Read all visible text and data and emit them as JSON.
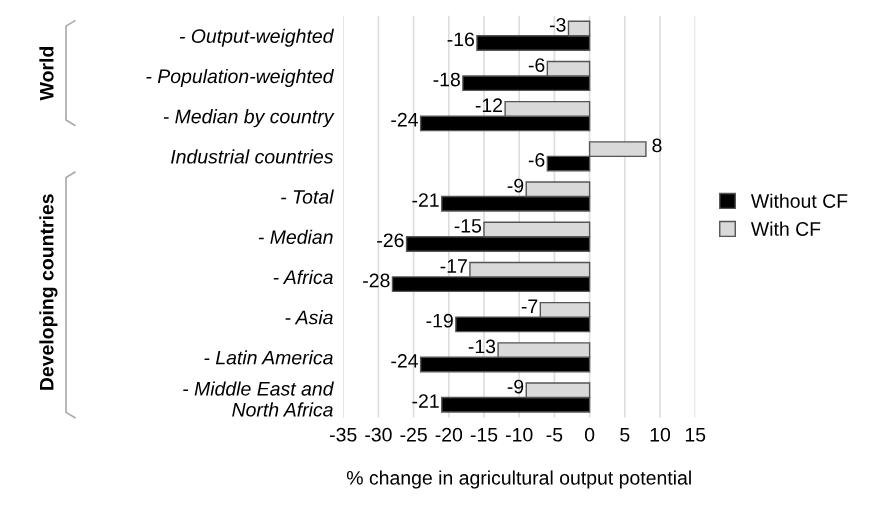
{
  "chart_data": {
    "type": "bar",
    "orientation": "horizontal",
    "xlabel": "% change in agricultural output potential",
    "categories": [
      "- Output-weighted",
      "- Population-weighted",
      "- Median by country",
      "Industrial countries",
      "- Total",
      "- Median",
      "- Africa",
      "- Asia",
      "- Latin America",
      "- Middle East and\nNorth Africa"
    ],
    "series": [
      {
        "name": "Without CF",
        "color": "#000000",
        "values": [
          -16,
          -18,
          -24,
          -6,
          -21,
          -26,
          -28,
          -19,
          -24,
          -21
        ]
      },
      {
        "name": "With CF",
        "color": "#d9d9d9",
        "values": [
          -3,
          -6,
          -12,
          8,
          -9,
          -15,
          -17,
          -7,
          -13,
          -9
        ]
      }
    ],
    "xlim": [
      -35,
      15
    ],
    "xticks": [
      -35,
      -30,
      -25,
      -20,
      -15,
      -10,
      -5,
      0,
      5,
      10,
      15
    ],
    "grid": "x",
    "legend": "right",
    "data_labels": true,
    "annotations": [
      "World",
      "Developing countries"
    ]
  }
}
